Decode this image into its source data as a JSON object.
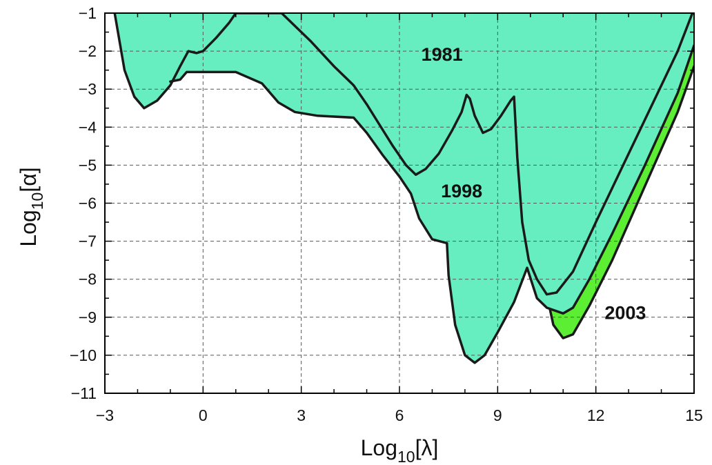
{
  "chart_data": {
    "type": "area",
    "xlabel": {
      "base": "Log",
      "sub": "10",
      "arg": "[λ]"
    },
    "ylabel": {
      "base": "Log",
      "sub": "10",
      "arg": "[α]"
    },
    "xlim": [
      -3,
      15
    ],
    "ylim": [
      -11,
      -1
    ],
    "xticks": [
      -3,
      0,
      3,
      6,
      9,
      12,
      15
    ],
    "yticks": [
      -1,
      -2,
      -3,
      -4,
      -5,
      -6,
      -7,
      -8,
      -9,
      -10,
      -11
    ],
    "xtick_labels": [
      "−3",
      "0",
      "3",
      "6",
      "9",
      "12",
      "15"
    ],
    "ytick_labels": [
      "−1",
      "−2",
      "−3",
      "−4",
      "−5",
      "−6",
      "−7",
      "−8",
      "−9",
      "−10",
      "−11"
    ],
    "grid": true,
    "series": [
      {
        "name": "1981",
        "color": "#66EEC0",
        "label_at": [
          7.3,
          -2.25
        ],
        "boundary": [
          [
            -2.7,
            -1.0
          ],
          [
            -2.4,
            -2.5
          ],
          [
            -2.1,
            -3.2
          ],
          [
            -1.8,
            -3.5
          ],
          [
            -1.4,
            -3.3
          ],
          [
            -1.0,
            -2.9
          ],
          [
            -0.7,
            -2.4
          ],
          [
            -0.45,
            -2.0
          ],
          [
            -0.2,
            -2.05
          ],
          [
            0.0,
            -2.0
          ],
          [
            0.4,
            -1.65
          ],
          [
            0.8,
            -1.25
          ],
          [
            1.0,
            -1.0
          ],
          [
            2.4,
            -1.0
          ],
          [
            3.3,
            -1.75
          ],
          [
            4.0,
            -2.4
          ],
          [
            4.6,
            -2.9
          ],
          [
            5.0,
            -3.4
          ],
          [
            5.4,
            -3.95
          ],
          [
            5.8,
            -4.5
          ],
          [
            6.2,
            -5.0
          ],
          [
            6.5,
            -5.25
          ],
          [
            6.8,
            -5.1
          ],
          [
            7.2,
            -4.7
          ],
          [
            7.6,
            -4.1
          ],
          [
            7.9,
            -3.6
          ],
          [
            8.05,
            -3.15
          ],
          [
            8.15,
            -3.25
          ],
          [
            8.3,
            -3.7
          ],
          [
            8.55,
            -4.15
          ],
          [
            8.8,
            -4.05
          ],
          [
            9.1,
            -3.7
          ],
          [
            9.4,
            -3.3
          ],
          [
            9.5,
            -3.2
          ],
          [
            9.6,
            -4.8
          ],
          [
            9.75,
            -6.5
          ],
          [
            9.95,
            -7.5
          ],
          [
            10.2,
            -8.0
          ],
          [
            10.5,
            -8.4
          ],
          [
            10.8,
            -8.35
          ],
          [
            11.3,
            -7.8
          ],
          [
            12.0,
            -6.5
          ],
          [
            13.0,
            -4.7
          ],
          [
            14.0,
            -2.9
          ],
          [
            14.5,
            -2.0
          ],
          [
            14.95,
            -1.0
          ]
        ]
      },
      {
        "name": "1998",
        "color": "#5CEE32",
        "label_at": [
          7.9,
          -5.85
        ],
        "boundary": [
          [
            -1.0,
            -2.8
          ],
          [
            -0.7,
            -2.75
          ],
          [
            -0.5,
            -2.55
          ],
          [
            0.0,
            -2.55
          ],
          [
            1.0,
            -2.55
          ],
          [
            1.8,
            -2.85
          ],
          [
            2.3,
            -3.35
          ],
          [
            2.8,
            -3.6
          ],
          [
            3.5,
            -3.7
          ],
          [
            4.6,
            -3.75
          ],
          [
            5.0,
            -4.15
          ],
          [
            5.5,
            -4.75
          ],
          [
            6.0,
            -5.3
          ],
          [
            6.35,
            -5.75
          ],
          [
            6.6,
            -6.4
          ],
          [
            7.0,
            -6.95
          ],
          [
            7.45,
            -7.05
          ],
          [
            7.5,
            -7.9
          ],
          [
            7.7,
            -9.2
          ],
          [
            8.0,
            -10.0
          ],
          [
            8.3,
            -10.2
          ],
          [
            8.6,
            -10.0
          ],
          [
            9.0,
            -9.4
          ],
          [
            9.5,
            -8.6
          ],
          [
            9.9,
            -7.7
          ],
          [
            10.2,
            -8.5
          ],
          [
            10.5,
            -8.75
          ],
          [
            11.0,
            -8.9
          ],
          [
            11.3,
            -8.75
          ],
          [
            11.8,
            -8.0
          ],
          [
            12.5,
            -6.8
          ],
          [
            13.5,
            -5.0
          ],
          [
            14.5,
            -3.1
          ],
          [
            15.0,
            -1.85
          ]
        ]
      },
      {
        "name": "2003",
        "color": "#F03A2A",
        "label_at": [
          12.9,
          -9.05
        ],
        "boundary": [
          [
            10.6,
            -8.8
          ],
          [
            10.7,
            -9.2
          ],
          [
            11.0,
            -9.55
          ],
          [
            11.3,
            -9.45
          ],
          [
            11.8,
            -8.7
          ],
          [
            12.5,
            -7.5
          ],
          [
            13.5,
            -5.55
          ],
          [
            14.5,
            -3.6
          ],
          [
            15.0,
            -2.4
          ]
        ]
      }
    ]
  }
}
